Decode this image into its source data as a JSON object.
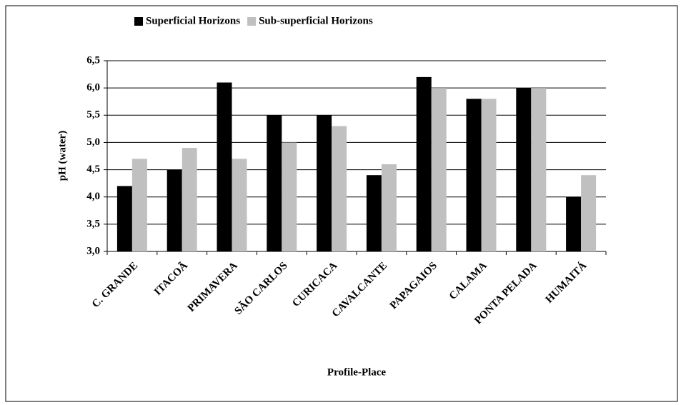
{
  "chart_data": {
    "type": "bar",
    "xlabel": "Profile-Place",
    "ylabel": "pH (water)",
    "categories": [
      "C. GRANDE",
      "ITACOÃ",
      "PRIMAVERA",
      "SÃO CARLOS",
      "CURICACA",
      "CAVALCANTE",
      "PAPAGAIOS",
      "CALAMA",
      "PONTA PELADA",
      "HUMAITÁ"
    ],
    "series": [
      {
        "name": "Superficial Horizons",
        "color": "#000000",
        "values": [
          4.2,
          4.5,
          6.1,
          5.5,
          5.5,
          4.4,
          6.2,
          5.8,
          6.0,
          4.0
        ]
      },
      {
        "name": "Sub-superficial Horizons",
        "color": "#c0c0c0",
        "values": [
          4.7,
          4.9,
          4.7,
          5.0,
          5.3,
          4.6,
          6.0,
          5.8,
          6.0,
          4.4
        ]
      }
    ],
    "ylim": [
      3.0,
      6.5
    ],
    "yticks": [
      {
        "value": 3.0,
        "label": "3,0"
      },
      {
        "value": 3.5,
        "label": "3,5"
      },
      {
        "value": 4.0,
        "label": "4,0"
      },
      {
        "value": 4.5,
        "label": "4,5"
      },
      {
        "value": 5.0,
        "label": "5,0"
      },
      {
        "value": 5.5,
        "label": "5,5"
      },
      {
        "value": 6.0,
        "label": "6,0"
      },
      {
        "value": 6.5,
        "label": "6,5"
      }
    ],
    "grid": true,
    "legend": "top"
  }
}
